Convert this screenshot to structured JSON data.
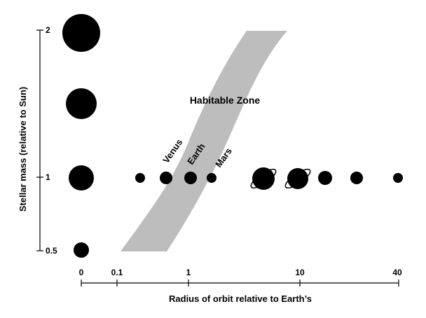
{
  "diagram": {
    "zone_label": "Habitable Zone",
    "x_axis": {
      "title": "Radius of orbit relative to Earth’s",
      "ticks": [
        "0",
        "0.1",
        "1",
        "10",
        "40"
      ]
    },
    "y_axis": {
      "title": "Stellar mass (relative to Sun)",
      "ticks": [
        "2",
        "1",
        "0.5"
      ]
    },
    "planet_labels": [
      "Venus",
      "Earth",
      "Mars"
    ],
    "colors": {
      "ink": "#000000",
      "habitable_zone": "#bdbdbd",
      "background": "#ffffff"
    }
  }
}
